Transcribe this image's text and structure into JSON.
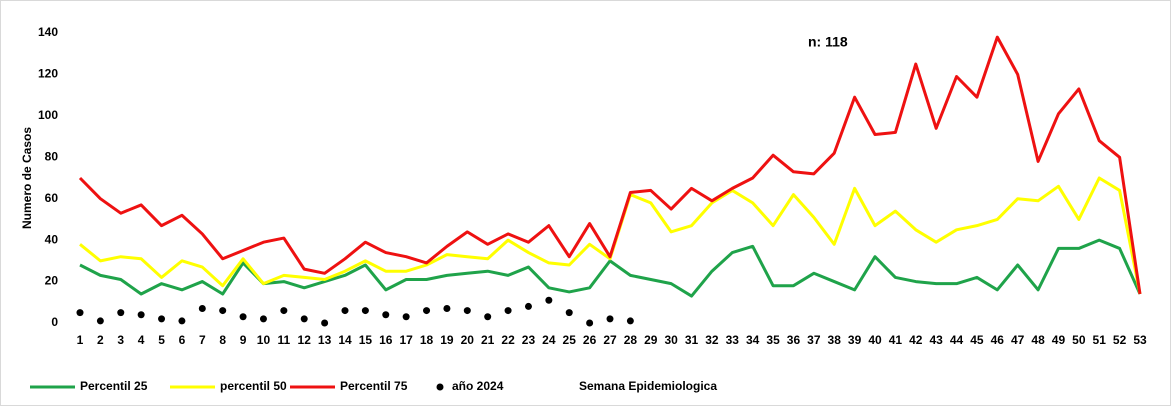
{
  "chart_data": {
    "type": "line",
    "annotation": "n: 118",
    "x_label": "Semana Epidemiologica",
    "y_label": "Numero de Casos",
    "categories": [
      "1",
      "2",
      "3",
      "4",
      "5",
      "6",
      "7",
      "8",
      "9",
      "10",
      "11",
      "12",
      "13",
      "14",
      "15",
      "16",
      "17",
      "18",
      "19",
      "20",
      "21",
      "22",
      "23",
      "24",
      "25",
      "26",
      "27",
      "28",
      "29",
      "30",
      "31",
      "32",
      "33",
      "34",
      "35",
      "36",
      "37",
      "38",
      "39",
      "40",
      "41",
      "42",
      "43",
      "44",
      "45",
      "46",
      "47",
      "48",
      "49",
      "50",
      "51",
      "52",
      "53"
    ],
    "ylim": [
      0,
      140
    ],
    "yticks": [
      0,
      20,
      40,
      60,
      80,
      100,
      120,
      140
    ],
    "grid": false,
    "legend": "bottom",
    "series": [
      {
        "name": "Percentil 25",
        "color": "#1fa34a",
        "type": "line",
        "values": [
          28,
          23,
          21,
          14,
          19,
          16,
          20,
          14,
          29,
          19,
          20,
          17,
          20,
          23,
          28,
          16,
          21,
          21,
          23,
          24,
          25,
          23,
          27,
          17,
          15,
          17,
          30,
          23,
          21,
          19,
          13,
          25,
          34,
          37,
          18,
          18,
          24,
          20,
          16,
          32,
          22,
          20,
          19,
          19,
          22,
          16,
          28,
          16,
          36,
          36,
          40,
          36,
          14
        ]
      },
      {
        "name": "percentil 50",
        "color": "#ffff00",
        "type": "line",
        "values": [
          38,
          30,
          32,
          31,
          22,
          30,
          27,
          18,
          31,
          19,
          23,
          22,
          21,
          25,
          30,
          25,
          25,
          28,
          33,
          32,
          31,
          40,
          34,
          29,
          28,
          38,
          31,
          62,
          58,
          44,
          47,
          58,
          64,
          58,
          47,
          62,
          51,
          38,
          65,
          47,
          54,
          45,
          39,
          45,
          47,
          50,
          60,
          59,
          66,
          50,
          70,
          64,
          14
        ]
      },
      {
        "name": "Percentil 75",
        "color": "#ee1111",
        "type": "line",
        "values": [
          70,
          60,
          53,
          57,
          47,
          52,
          43,
          31,
          35,
          39,
          41,
          26,
          24,
          31,
          39,
          34,
          32,
          29,
          37,
          44,
          38,
          43,
          39,
          47,
          32,
          48,
          32,
          63,
          64,
          55,
          65,
          59,
          65,
          70,
          81,
          73,
          72,
          82,
          109,
          91,
          92,
          125,
          94,
          119,
          109,
          138,
          120,
          78,
          101,
          113,
          88,
          80,
          14
        ]
      },
      {
        "name": "año 2024",
        "color": "#000000",
        "type": "scatter",
        "values": [
          5,
          1,
          5,
          4,
          2,
          1,
          7,
          6,
          3,
          2,
          6,
          2,
          0,
          6,
          6,
          4,
          3,
          6,
          7,
          6,
          3,
          6,
          8,
          11,
          5,
          0,
          2,
          1,
          null,
          null,
          null,
          null,
          null,
          null,
          null,
          null,
          null,
          null,
          null,
          null,
          null,
          null,
          null,
          null,
          null,
          null,
          null,
          null,
          null,
          null,
          null,
          null,
          null
        ]
      }
    ]
  }
}
